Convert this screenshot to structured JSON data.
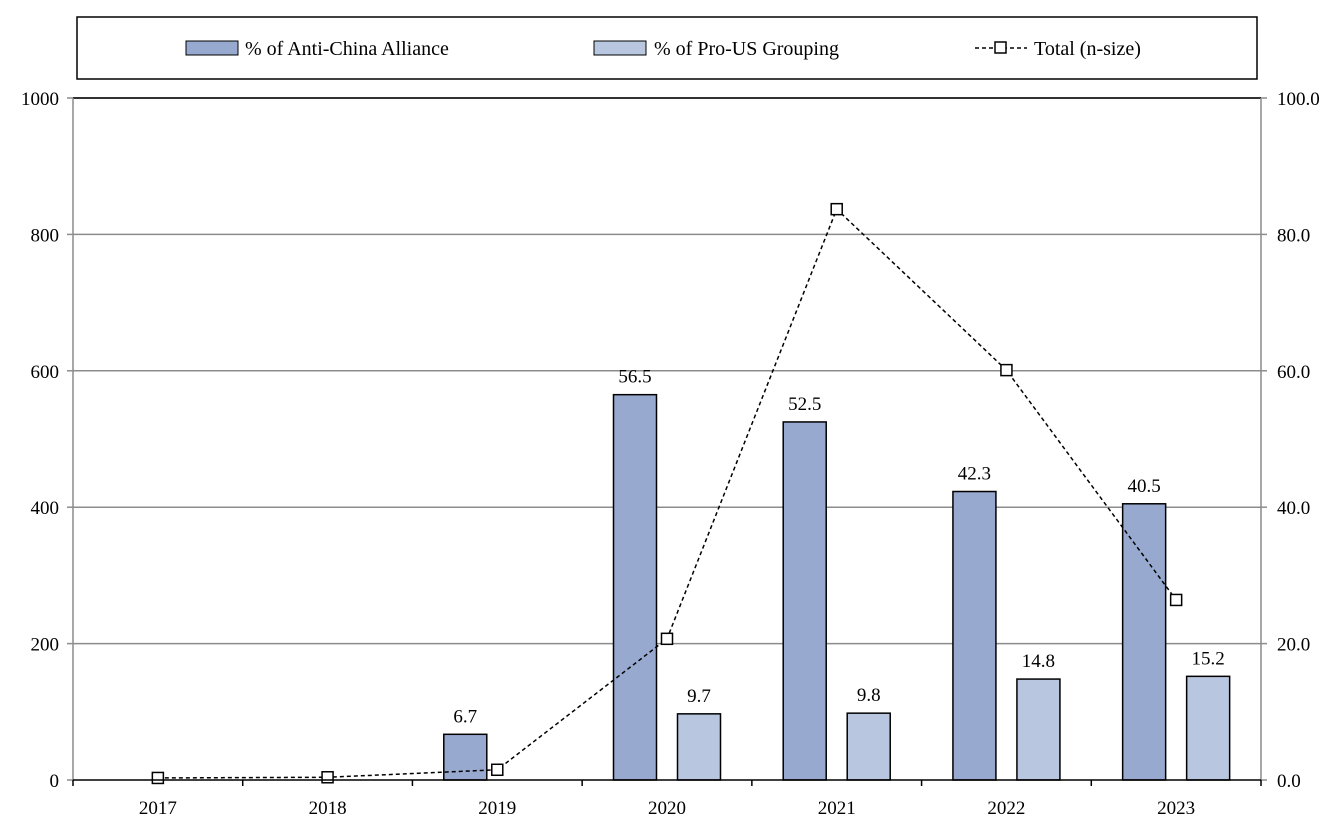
{
  "chart_data": {
    "type": "bar",
    "categories": [
      "2017",
      "2018",
      "2019",
      "2020",
      "2021",
      "2022",
      "2023"
    ],
    "series": [
      {
        "name": "% of Anti-China Alliance",
        "kind": "bar",
        "axis": "right",
        "values": [
          null,
          null,
          6.7,
          56.5,
          52.5,
          42.3,
          40.5
        ],
        "labels": [
          "",
          "",
          "6.7",
          "56.5",
          "52.5",
          "42.3",
          "40.5"
        ],
        "color": "#97a9cf"
      },
      {
        "name": "% of Pro-US Grouping",
        "kind": "bar",
        "axis": "right",
        "values": [
          null,
          null,
          null,
          9.7,
          9.8,
          14.8,
          15.2
        ],
        "labels": [
          "",
          "",
          "",
          "9.7",
          "9.8",
          "14.8",
          "15.2"
        ],
        "color": "#b9c6e0"
      },
      {
        "name": "Total (n-size)",
        "kind": "line",
        "axis": "left",
        "style": "dashed",
        "marker": "open-square",
        "values": [
          3,
          4,
          15,
          207,
          837,
          601,
          264
        ]
      }
    ],
    "y_left": {
      "lim": [
        0,
        1000
      ],
      "ticks": [
        "0",
        "200",
        "400",
        "600",
        "800",
        "1000"
      ]
    },
    "y_right": {
      "lim": [
        0,
        100
      ],
      "ticks": [
        "0.0",
        "20.0",
        "40.0",
        "60.0",
        "80.0",
        "100.0"
      ]
    },
    "grid": true,
    "legend": "top"
  }
}
